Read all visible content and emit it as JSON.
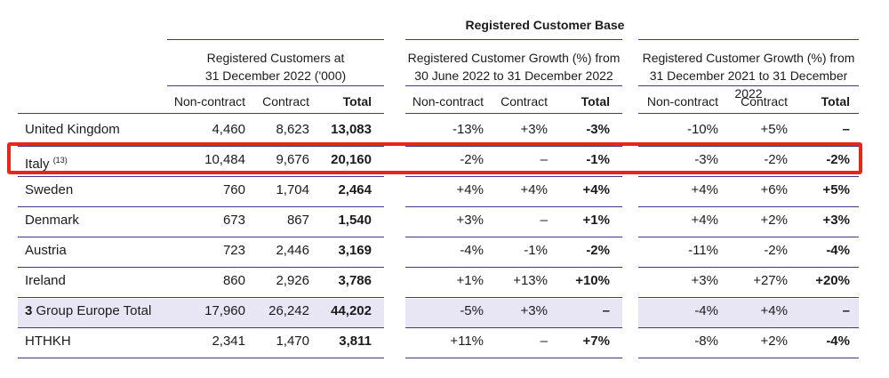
{
  "title": "Registered Customer Base",
  "groups": [
    {
      "label_line1": "Registered Customers at",
      "label_line2": "31 December 2022 ('000)"
    },
    {
      "label_line1": "Registered Customer Growth (%) from",
      "label_line2": "30 June 2022 to 31 December 2022"
    },
    {
      "label_line1": "Registered Customer Growth (%) from",
      "label_line2": "31 December 2021 to 31 December 2022"
    }
  ],
  "sub_headers": [
    "Non-contract",
    "Contract",
    "Total",
    "Non-contract",
    "Contract",
    "Total",
    "Non-contract",
    "Contract",
    "Total"
  ],
  "rows": [
    {
      "label": "United Kingdom",
      "footnote": "",
      "values": [
        "4,460",
        "8,623",
        "13,083",
        "-13%",
        "+3%",
        "-3%",
        "-10%",
        "+5%",
        "–"
      ]
    },
    {
      "label": "Italy",
      "footnote": "(13)",
      "values": [
        "10,484",
        "9,676",
        "20,160",
        "-2%",
        "–",
        "-1%",
        "-3%",
        "-2%",
        "-2%"
      ]
    },
    {
      "label": "Sweden",
      "footnote": "",
      "values": [
        "760",
        "1,704",
        "2,464",
        "+4%",
        "+4%",
        "+4%",
        "+4%",
        "+6%",
        "+5%"
      ]
    },
    {
      "label": "Denmark",
      "footnote": "",
      "values": [
        "673",
        "867",
        "1,540",
        "+3%",
        "–",
        "+1%",
        "+4%",
        "+2%",
        "+3%"
      ]
    },
    {
      "label": "Austria",
      "footnote": "",
      "values": [
        "723",
        "2,446",
        "3,169",
        "-4%",
        "-1%",
        "-2%",
        "-11%",
        "-2%",
        "-4%"
      ]
    },
    {
      "label": "Ireland",
      "footnote": "",
      "values": [
        "860",
        "2,926",
        "3,786",
        "+1%",
        "+13%",
        "+10%",
        "+3%",
        "+27%",
        "+20%"
      ]
    },
    {
      "label_prefix": "3",
      "label": "Group Europe Total",
      "footnote": "",
      "values": [
        "17,960",
        "26,242",
        "44,202",
        "-5%",
        "+3%",
        "–",
        "-4%",
        "+4%",
        "–"
      ]
    },
    {
      "label": "HTHKH",
      "footnote": "",
      "values": [
        "2,341",
        "1,470",
        "3,811",
        "+11%",
        "–",
        "+7%",
        "-8%",
        "+2%",
        "-4%"
      ]
    }
  ],
  "colors": {
    "rule": "#3a3a88",
    "total_shade": "#e8e6f4",
    "highlight_border": "#e8251b"
  }
}
